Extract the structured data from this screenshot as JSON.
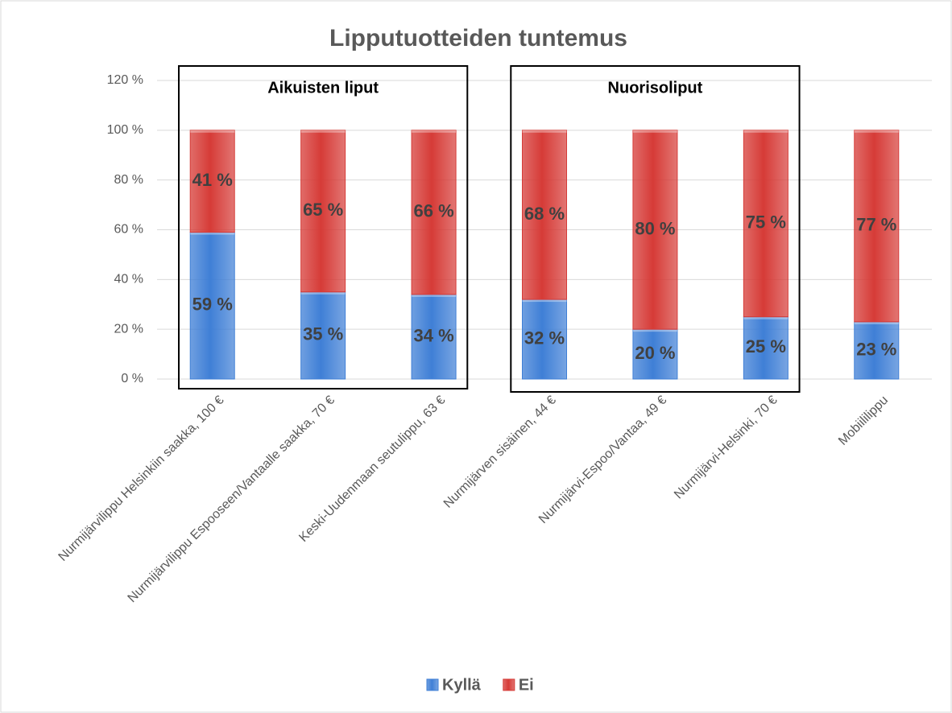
{
  "chart_data": {
    "type": "stacked_bar",
    "title": "Lipputuotteiden tuntemus",
    "categories": [
      "Nurmijärvilippu Helsinkiin saakka, 100 €",
      "Nurmijärvilippu Espooseen/Vantaalle saakka, 70 €",
      "Keski-Uudenmaan seutulippu, 63 €",
      "Nurmijärven sisäinen, 44 €",
      "Nurmijärvi-Espoo/Vantaa, 49 €",
      "Nurmijärvi-Helsinki, 70 €",
      "Mobiililippu"
    ],
    "series": [
      {
        "name": "Kyllä",
        "color": "#3f7fd6",
        "values": [
          59,
          35,
          34,
          32,
          20,
          25,
          23
        ],
        "value_labels": [
          "59 %",
          "35 %",
          "34 %",
          "32 %",
          "20 %",
          "25 %",
          "23 %"
        ]
      },
      {
        "name": "Ei",
        "color": "#d63b37",
        "values": [
          41,
          65,
          66,
          68,
          80,
          75,
          77
        ],
        "value_labels": [
          "41 %",
          "65 %",
          "66 %",
          "68 %",
          "80 %",
          "75 %",
          "77 %"
        ]
      }
    ],
    "annotations": [
      "Aikuisten liput",
      "Nuorisoliput"
    ],
    "ylim": [
      0,
      120
    ],
    "yticks": [
      {
        "value": 0,
        "label": "0 %"
      },
      {
        "value": 20,
        "label": "20 %"
      },
      {
        "value": 40,
        "label": "40 %"
      },
      {
        "value": 60,
        "label": "60 %"
      },
      {
        "value": 80,
        "label": "80 %"
      },
      {
        "value": 100,
        "label": "100 %"
      },
      {
        "value": 120,
        "label": "120 %"
      }
    ],
    "grid": true,
    "legend": "bottom"
  }
}
